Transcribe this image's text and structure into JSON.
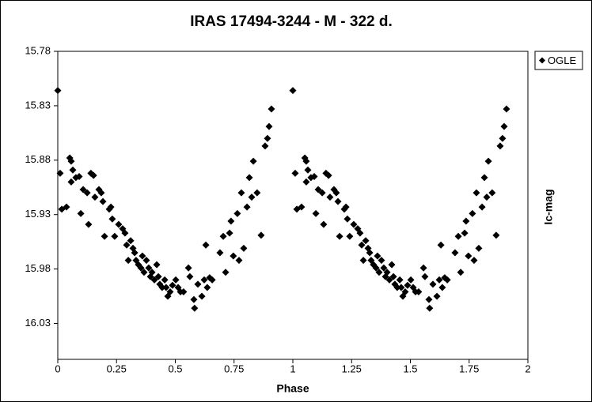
{
  "chart_data": {
    "type": "scatter",
    "title": "IRAS 17494-3244  - M - 322 d.",
    "x_label": "Phase",
    "y_label": "Ic-mag",
    "xlim": [
      0,
      2
    ],
    "xticks": [
      0,
      0.25,
      0.5,
      0.75,
      1,
      1.25,
      1.5,
      1.75,
      2
    ],
    "ylim": [
      15.78,
      16.063
    ],
    "yticks": [
      15.78,
      15.83,
      15.88,
      15.93,
      15.98,
      16.03
    ],
    "y_inverted": true,
    "grid": false,
    "legend": "right",
    "marker": "diamond",
    "series": [
      {
        "name": "OGLE",
        "color": "#000000",
        "x": [
          0.0,
          0.01,
          0.017,
          0.037,
          0.051,
          0.057,
          0.057,
          0.064,
          0.077,
          0.091,
          0.098,
          0.108,
          0.125,
          0.131,
          0.141,
          0.152,
          0.158,
          0.175,
          0.185,
          0.192,
          0.199,
          0.219,
          0.226,
          0.232,
          0.242,
          0.259,
          0.276,
          0.286,
          0.293,
          0.3,
          0.31,
          0.32,
          0.327,
          0.333,
          0.343,
          0.354,
          0.36,
          0.367,
          0.377,
          0.387,
          0.394,
          0.401,
          0.411,
          0.421,
          0.428,
          0.434,
          0.444,
          0.455,
          0.461,
          0.468,
          0.478,
          0.488,
          0.502,
          0.512,
          0.522,
          0.535,
          0.556,
          0.562,
          0.579,
          0.582,
          0.596,
          0.613,
          0.623,
          0.63,
          0.636,
          0.646,
          0.657,
          0.69,
          0.704,
          0.714,
          0.731,
          0.737,
          0.747,
          0.764,
          0.771,
          0.781,
          0.791,
          0.805,
          0.815,
          0.825,
          0.832,
          0.848,
          0.865,
          0.882,
          0.892,
          0.899,
          0.909,
          1.0,
          1.01,
          1.017,
          1.037,
          1.051,
          1.057,
          1.057,
          1.064,
          1.077,
          1.091,
          1.098,
          1.108,
          1.125,
          1.131,
          1.141,
          1.152,
          1.158,
          1.175,
          1.185,
          1.192,
          1.199,
          1.219,
          1.226,
          1.232,
          1.242,
          1.259,
          1.276,
          1.286,
          1.293,
          1.3,
          1.31,
          1.32,
          1.327,
          1.333,
          1.343,
          1.354,
          1.36,
          1.367,
          1.377,
          1.387,
          1.394,
          1.401,
          1.411,
          1.421,
          1.428,
          1.434,
          1.444,
          1.455,
          1.461,
          1.468,
          1.478,
          1.488,
          1.502,
          1.512,
          1.522,
          1.535,
          1.556,
          1.562,
          1.579,
          1.582,
          1.596,
          1.613,
          1.623,
          1.63,
          1.636,
          1.646,
          1.657,
          1.69,
          1.704,
          1.714,
          1.731,
          1.737,
          1.747,
          1.764,
          1.771,
          1.781,
          1.791,
          1.805,
          1.815,
          1.825,
          1.832,
          1.848,
          1.865,
          1.882,
          1.892,
          1.899,
          1.909
        ],
        "values": [
          15.816,
          15.892,
          15.925,
          15.923,
          15.878,
          15.881,
          15.9,
          15.889,
          15.896,
          15.895,
          15.929,
          15.907,
          15.91,
          15.939,
          15.892,
          15.894,
          15.914,
          15.907,
          15.91,
          15.918,
          15.95,
          15.925,
          15.923,
          15.934,
          15.95,
          15.939,
          15.943,
          15.947,
          15.958,
          15.972,
          15.954,
          15.961,
          15.965,
          15.972,
          15.976,
          15.979,
          15.968,
          15.983,
          15.972,
          15.979,
          15.987,
          15.983,
          15.99,
          15.976,
          15.987,
          15.994,
          15.997,
          15.99,
          15.997,
          16.005,
          16.001,
          15.995,
          15.99,
          15.997,
          16.001,
          16.001,
          15.979,
          15.987,
          16.008,
          16.016,
          15.994,
          16.005,
          15.99,
          15.958,
          15.997,
          15.988,
          15.99,
          15.965,
          15.95,
          15.983,
          15.947,
          15.936,
          15.968,
          15.929,
          15.972,
          15.91,
          15.961,
          15.923,
          15.896,
          15.914,
          15.881,
          15.91,
          15.949,
          15.867,
          15.86,
          15.849,
          15.833,
          15.816,
          15.892,
          15.925,
          15.923,
          15.878,
          15.881,
          15.9,
          15.889,
          15.896,
          15.895,
          15.929,
          15.907,
          15.91,
          15.939,
          15.892,
          15.894,
          15.914,
          15.907,
          15.91,
          15.918,
          15.95,
          15.925,
          15.923,
          15.934,
          15.95,
          15.939,
          15.943,
          15.947,
          15.958,
          15.972,
          15.954,
          15.961,
          15.965,
          15.972,
          15.976,
          15.979,
          15.968,
          15.983,
          15.972,
          15.979,
          15.987,
          15.983,
          15.99,
          15.976,
          15.987,
          15.994,
          15.997,
          15.99,
          15.997,
          16.005,
          16.001,
          15.995,
          15.99,
          15.997,
          16.001,
          16.001,
          15.979,
          15.987,
          16.008,
          16.016,
          15.994,
          16.005,
          15.99,
          15.958,
          15.997,
          15.988,
          15.99,
          15.965,
          15.95,
          15.983,
          15.947,
          15.936,
          15.968,
          15.929,
          15.972,
          15.91,
          15.961,
          15.923,
          15.896,
          15.914,
          15.881,
          15.91,
          15.949,
          15.867,
          15.86,
          15.849,
          15.833
        ]
      }
    ]
  }
}
